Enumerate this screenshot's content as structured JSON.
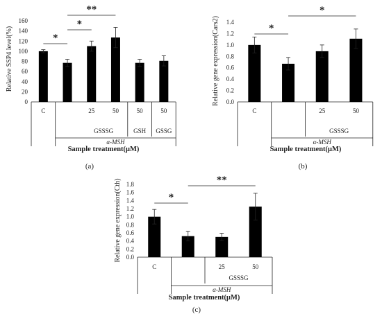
{
  "chart_data": [
    {
      "id": "a",
      "type": "bar",
      "panel_label": "(a)",
      "ylabel": "Relative SSP4 level(%)",
      "ylim": [
        0,
        160
      ],
      "yticks": [
        "0",
        "20",
        "40",
        "60",
        "80",
        "100",
        "120",
        "140",
        "160"
      ],
      "categories": [
        "C",
        "",
        "25",
        "50",
        "50",
        "50"
      ],
      "values": [
        100,
        77,
        110,
        127,
        77,
        81
      ],
      "errors": [
        3,
        7,
        10,
        20,
        7,
        10
      ],
      "group_labels": [
        "GSSSG",
        "GSH",
        "GSSG"
      ],
      "treatment_label": "α-MSH",
      "xlabel": "Sample treatment(μM)",
      "significance": [
        {
          "from": 0,
          "to": 1,
          "label": "*"
        },
        {
          "from": 1,
          "to": 2,
          "label": "*"
        },
        {
          "from": 1,
          "to": 3,
          "label": "**"
        }
      ]
    },
    {
      "id": "b",
      "type": "bar",
      "panel_label": "(b)",
      "ylabel": "Relative gene expression(Cars2)",
      "ylim": [
        0,
        1.4
      ],
      "yticks": [
        "0.0",
        "0.2",
        "0.4",
        "0.6",
        "0.8",
        "1.0",
        "1.2",
        "1.4"
      ],
      "categories": [
        "C",
        "",
        "25",
        "50"
      ],
      "values": [
        1.0,
        0.67,
        0.89,
        1.11
      ],
      "errors": [
        0.14,
        0.11,
        0.11,
        0.17
      ],
      "group_labels": [
        "GSSSG"
      ],
      "treatment_label": "α-MSH",
      "xlabel": "Sample treatment(μM)",
      "significance": [
        {
          "from": 0,
          "to": 1,
          "label": "*"
        },
        {
          "from": 1,
          "to": 3,
          "label": "*"
        }
      ]
    },
    {
      "id": "c",
      "type": "bar",
      "panel_label": "(c)",
      "ylabel": "Relative gene expression(Cth)",
      "ylim": [
        0,
        1.8
      ],
      "yticks": [
        "0.0",
        "0.2",
        "0.4",
        "0.6",
        "0.8",
        "1.0",
        "1.2",
        "1.4",
        "1.6",
        "1.8"
      ],
      "categories": [
        "C",
        "",
        "25",
        "50"
      ],
      "values": [
        1.0,
        0.52,
        0.5,
        1.25
      ],
      "errors": [
        0.18,
        0.12,
        0.09,
        0.33
      ],
      "group_labels": [
        "GSSSG"
      ],
      "treatment_label": "α-MSH",
      "xlabel": "Sample treatment(μM)",
      "significance": [
        {
          "from": 0,
          "to": 1,
          "label": "*"
        },
        {
          "from": 1,
          "to": 3,
          "label": "**"
        }
      ]
    }
  ]
}
